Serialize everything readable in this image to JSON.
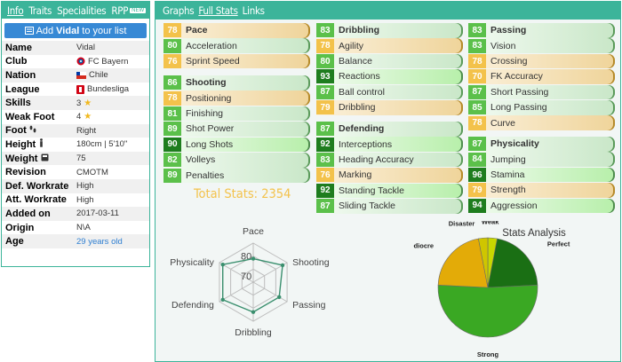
{
  "left_tabs": {
    "info": "Info",
    "traits": "Traits",
    "specialities": "Specialities",
    "rpp": "RPP",
    "new_badge": "NEW"
  },
  "add_button": {
    "prefix": "Add",
    "name": "Vidal",
    "suffix": "to your list"
  },
  "info_rows": [
    {
      "label": "Name",
      "value": "Vidal"
    },
    {
      "label": "Club",
      "value": "FC Bayern"
    },
    {
      "label": "Nation",
      "value": "Chile"
    },
    {
      "label": "League",
      "value": "Bundesliga"
    },
    {
      "label": "Skills",
      "value": "3"
    },
    {
      "label": "Weak Foot",
      "value": "4"
    },
    {
      "label": "Foot",
      "value": "Right"
    },
    {
      "label": "Height",
      "value": "180cm | 5'10\""
    },
    {
      "label": "Weight",
      "value": "75"
    },
    {
      "label": "Revision",
      "value": "CMOTM"
    },
    {
      "label": "Def. Workrate",
      "value": "High"
    },
    {
      "label": "Att. Workrate",
      "value": "High"
    },
    {
      "label": "Added on",
      "value": "2017-03-11"
    },
    {
      "label": "Origin",
      "value": "N\\A"
    },
    {
      "label": "Age",
      "value": "29 years old"
    }
  ],
  "right_tabs": {
    "graphs": "Graphs",
    "full_stats": "Full Stats",
    "links": "Links"
  },
  "stat_categories": [
    {
      "head": {
        "value": "78",
        "label": "Pace",
        "color": "yellow"
      },
      "stats": [
        {
          "value": "80",
          "label": "Acceleration",
          "color": "green"
        },
        {
          "value": "76",
          "label": "Sprint Speed",
          "color": "yellow"
        }
      ]
    },
    {
      "head": {
        "value": "86",
        "label": "Shooting",
        "color": "green"
      },
      "stats": [
        {
          "value": "78",
          "label": "Positioning",
          "color": "yellow"
        },
        {
          "value": "81",
          "label": "Finishing",
          "color": "green"
        },
        {
          "value": "89",
          "label": "Shot Power",
          "color": "green"
        },
        {
          "value": "90",
          "label": "Long Shots",
          "color": "dark"
        },
        {
          "value": "82",
          "label": "Volleys",
          "color": "green"
        },
        {
          "value": "89",
          "label": "Penalties",
          "color": "green"
        }
      ]
    },
    {
      "head": {
        "value": "83",
        "label": "Dribbling",
        "color": "green"
      },
      "stats": [
        {
          "value": "78",
          "label": "Agility",
          "color": "yellow"
        },
        {
          "value": "80",
          "label": "Balance",
          "color": "green"
        },
        {
          "value": "93",
          "label": "Reactions",
          "color": "dark"
        },
        {
          "value": "87",
          "label": "Ball control",
          "color": "green"
        },
        {
          "value": "79",
          "label": "Dribbling",
          "color": "yellow"
        }
      ]
    },
    {
      "head": {
        "value": "87",
        "label": "Defending",
        "color": "green"
      },
      "stats": [
        {
          "value": "92",
          "label": "Interceptions",
          "color": "dark"
        },
        {
          "value": "83",
          "label": "Heading Accuracy",
          "color": "green"
        },
        {
          "value": "76",
          "label": "Marking",
          "color": "yellow"
        },
        {
          "value": "92",
          "label": "Standing Tackle",
          "color": "dark"
        },
        {
          "value": "87",
          "label": "Sliding Tackle",
          "color": "green"
        }
      ]
    },
    {
      "head": {
        "value": "83",
        "label": "Passing",
        "color": "green"
      },
      "stats": [
        {
          "value": "83",
          "label": "Vision",
          "color": "green"
        },
        {
          "value": "78",
          "label": "Crossing",
          "color": "yellow"
        },
        {
          "value": "70",
          "label": "FK Accuracy",
          "color": "yellow"
        },
        {
          "value": "87",
          "label": "Short Passing",
          "color": "green"
        },
        {
          "value": "85",
          "label": "Long Passing",
          "color": "green"
        },
        {
          "value": "78",
          "label": "Curve",
          "color": "yellow"
        }
      ]
    },
    {
      "head": {
        "value": "87",
        "label": "Physicality",
        "color": "green"
      },
      "stats": [
        {
          "value": "84",
          "label": "Jumping",
          "color": "green"
        },
        {
          "value": "96",
          "label": "Stamina",
          "color": "dark"
        },
        {
          "value": "79",
          "label": "Strength",
          "color": "yellow"
        },
        {
          "value": "94",
          "label": "Aggression",
          "color": "dark"
        }
      ]
    }
  ],
  "total_stats": "Total Stats: 2354",
  "colors": {
    "yellow": "#f3c24b",
    "green": "#5bc04a",
    "dark": "#1e7d1e",
    "accent": "#3cb49a",
    "link": "#2f7fd1"
  },
  "chart_data": [
    {
      "type": "radar",
      "categories": [
        "Pace",
        "Shooting",
        "Passing",
        "Dribbling",
        "Defending",
        "Physicality"
      ],
      "values": [
        78,
        86,
        83,
        83,
        87,
        87
      ],
      "tick_labels": [
        "80",
        "70"
      ],
      "range": [
        60,
        90
      ]
    },
    {
      "type": "pie",
      "title": "Stats Analysis",
      "categories": [
        "Weak",
        "Perfect",
        "Strong",
        "Mediocre",
        "Disaster"
      ],
      "values": [
        1,
        7,
        17,
        7,
        1
      ],
      "colors": [
        "#c8d800",
        "#1a6f14",
        "#3aa823",
        "#e3ab08",
        "#cfc600"
      ]
    }
  ]
}
